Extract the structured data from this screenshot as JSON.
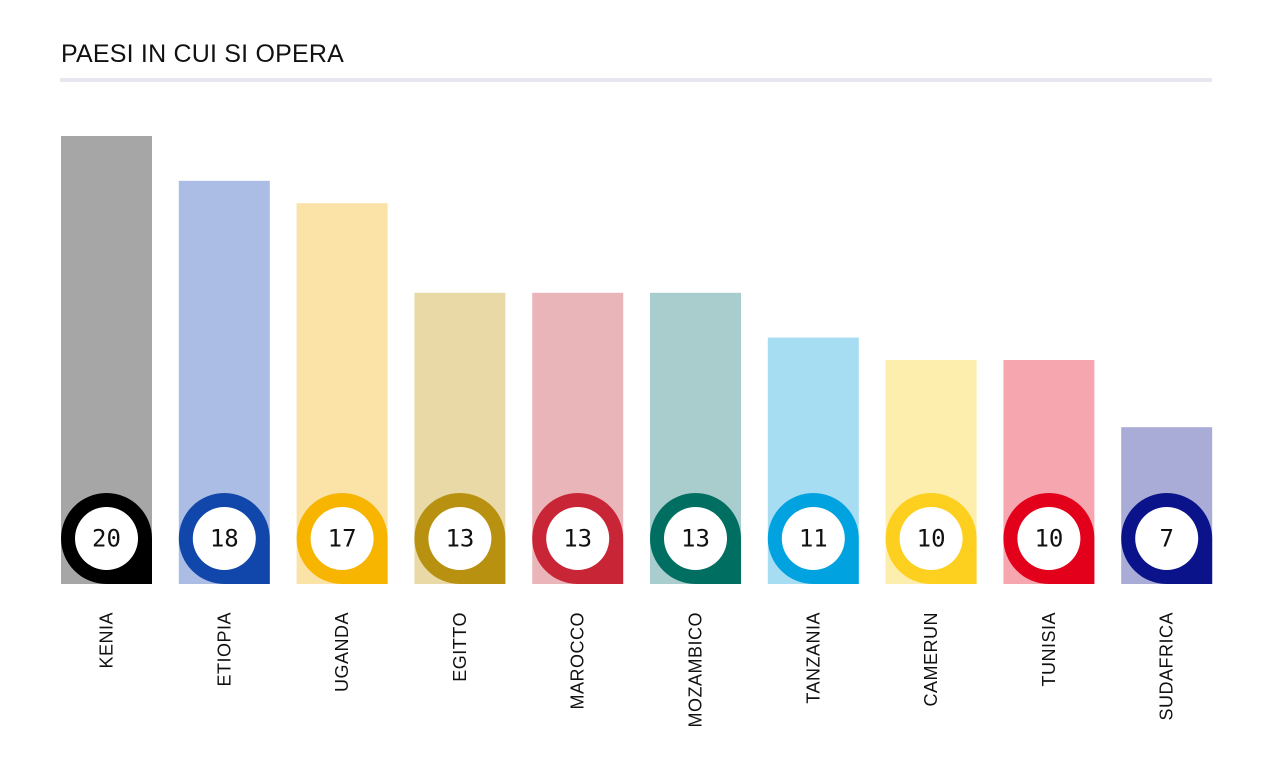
{
  "chart_data": {
    "type": "bar",
    "title": "PAESI IN CUI SI OPERA",
    "categories": [
      "KENIA",
      "ETIOPIA",
      "UGANDA",
      "EGITTO",
      "MAROCCO",
      "MOZAMBICO",
      "TANZANIA",
      "CAMERUN",
      "TUNISIA",
      "SUDAFRICA"
    ],
    "values": [
      20,
      18,
      17,
      13,
      13,
      13,
      11,
      10,
      10,
      7
    ],
    "value_labels": [
      "20",
      "18",
      "17",
      "13",
      "13",
      "13",
      "11",
      "10",
      "10",
      "7"
    ],
    "ylim": [
      0,
      20
    ],
    "grid": false,
    "bar_colors": [
      "#a6a6a6",
      "#abbde4",
      "#fbe2a7",
      "#e8d9a7",
      "#e9b5b8",
      "#a8cdcc",
      "#a6ddf2",
      "#fdeeae",
      "#f6a6ae",
      "#a8acd6"
    ],
    "marker_colors": [
      "#000000",
      "#1147aa",
      "#f7b500",
      "#b99110",
      "#c82536",
      "#006f62",
      "#00a3e0",
      "#fdd01f",
      "#e3001b",
      "#0b138a"
    ]
  }
}
